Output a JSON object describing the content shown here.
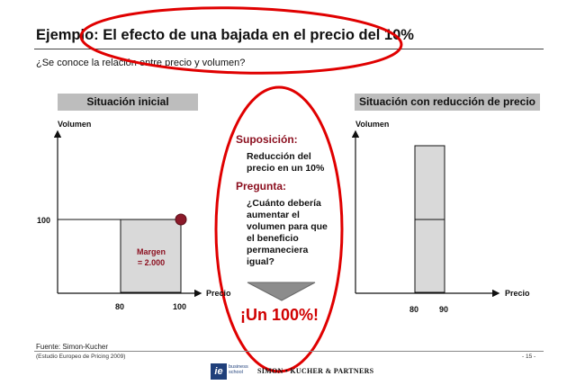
{
  "slide": {
    "title": "Ejemplo: El efecto de una bajada en el precio del 10%",
    "subtitle": "¿Se conoce la relación entre precio y volumen?"
  },
  "left_panel": {
    "header": "Situación inicial",
    "y_axis_label": "Volumen",
    "x_axis_label": "Precio",
    "y_tick": "100",
    "x_ticks": [
      "80",
      "100"
    ],
    "margin_label_line1": "Margen",
    "margin_label_line2": "= 2.000"
  },
  "right_panel": {
    "header": "Situación con reducción de precio",
    "y_axis_label": "Volumen",
    "x_axis_label": "Precio",
    "x_ticks": [
      "80",
      "90"
    ]
  },
  "center": {
    "assumption_heading": "Suposición:",
    "assumption_lines": [
      "Reducción del",
      "precio en un 10%"
    ],
    "question_heading": "Pregunta:",
    "question_lines": [
      "¿Cuánto debería",
      "aumentar el",
      "volumen para que",
      "el beneficio",
      "permaneciera",
      "igual?"
    ],
    "answer": "¡Un 100%!"
  },
  "footer": {
    "source": "Fuente: Simon-Kucher",
    "note": "(Estudio Europeo de Pricing 2009)",
    "page": "- 15 -",
    "logo_ie_letter": "ie",
    "logo_ie_sub1": "business",
    "logo_ie_sub2": "school",
    "logo_partner": "SIMON • KUCHER & PARTNERS"
  },
  "colors": {
    "accent_red": "#d00000",
    "dark_red": "#8b0e1e",
    "panel_header_gray": "#bdbdbd",
    "shade_gray": "#d9d9d9"
  }
}
